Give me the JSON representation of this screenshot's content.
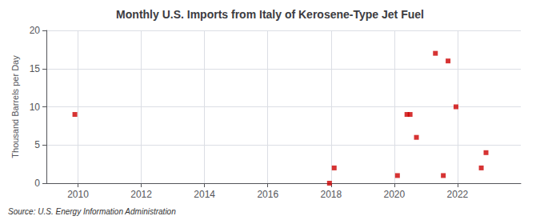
{
  "chart_data": {
    "type": "scatter",
    "title": "Monthly U.S. Imports from Italy of Kerosene-Type Jet Fuel",
    "ylabel": "Thousand Barrels per Day",
    "annotation": "Source: U.S. Energy Information Administration",
    "x": [
      2009.9,
      2017.95,
      2018.1,
      2020.1,
      2020.4,
      2020.5,
      2020.7,
      2021.3,
      2021.55,
      2021.7,
      2021.95,
      2022.75,
      2022.9
    ],
    "values": [
      9,
      0,
      2,
      1,
      9,
      9,
      6,
      17,
      1,
      16,
      10,
      2,
      4
    ],
    "color": "#cc0000",
    "marker": "square",
    "xlim": [
      2009.0,
      2024.0
    ],
    "xticks": [
      2010,
      2012,
      2014,
      2016,
      2018,
      2020,
      2022
    ],
    "ylim": [
      0,
      20
    ],
    "yticks": [
      0,
      5,
      10,
      15,
      20
    ],
    "grid": true
  }
}
